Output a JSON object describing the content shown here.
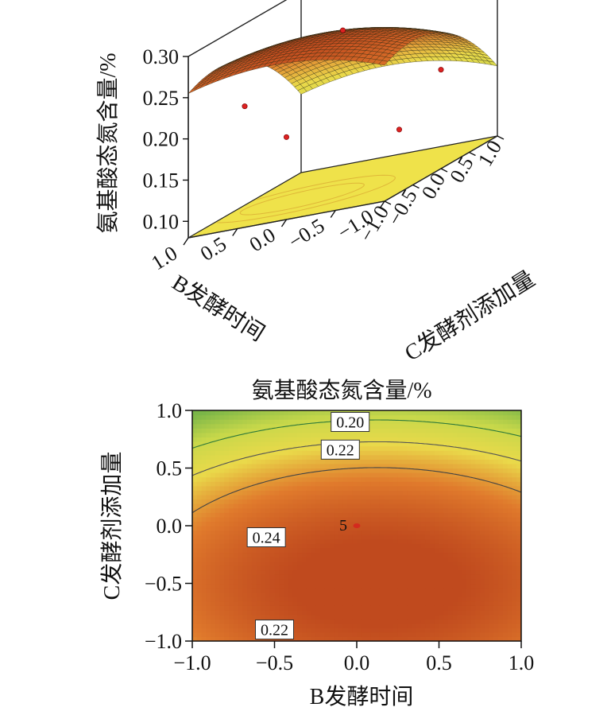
{
  "chart_data": [
    {
      "type": "surface",
      "title": "",
      "xlabel": "B发酵时间",
      "ylabel": "C发酵剂添加量",
      "zlabel": "氨基酸态氮含量/%",
      "x_ticks": [
        "−1.0",
        "−0.5",
        "0.0",
        "0.5",
        "1.0"
      ],
      "y_ticks": [
        "−1.0",
        "−0.5",
        "0.0",
        "0.5",
        "1.0"
      ],
      "z_ticks": [
        "0.10",
        "0.15",
        "0.20",
        "0.25",
        "0.30"
      ],
      "xlim": [
        -1,
        1
      ],
      "ylim": [
        -1,
        1
      ],
      "zlim": [
        0.08,
        0.3
      ],
      "colormap": [
        "#7ab648",
        "#c8d84a",
        "#ead94a",
        "#e07a2c",
        "#c04a1e"
      ],
      "design_points": [
        {
          "x": -1,
          "y": 0,
          "z": 0.2
        },
        {
          "x": 1,
          "y": 0,
          "z": 0.2
        },
        {
          "x": 0,
          "y": -1,
          "z": 0.18
        },
        {
          "x": 0,
          "y": 1,
          "z": 0.11
        },
        {
          "x": 0,
          "y": 0,
          "z": 0.27
        }
      ]
    },
    {
      "type": "contour",
      "title": "氨基酸态氮含量/%",
      "xlabel": "B发酵时间",
      "ylabel": "C发酵剂添加量",
      "x_ticks": [
        "−1.0",
        "−0.5",
        "0.0",
        "0.5",
        "1.0"
      ],
      "y_ticks": [
        "−1.0",
        "−0.5",
        "0.0",
        "0.5",
        "1.0"
      ],
      "xlim": [
        -1,
        1
      ],
      "ylim": [
        -1,
        1
      ],
      "contour_labels": [
        {
          "text": "0.20",
          "x": -0.04,
          "y": 0.9
        },
        {
          "text": "0.22",
          "x": -0.1,
          "y": 0.66
        },
        {
          "text": "0.24",
          "x": -0.55,
          "y": -0.1
        },
        {
          "text": "0.22",
          "x": -0.5,
          "y": -0.9
        }
      ],
      "center_point": {
        "label": "5",
        "x": 0,
        "y": 0
      },
      "colormap": [
        "#7ab648",
        "#c8d84a",
        "#ead94a",
        "#e07a2c",
        "#c04a1e"
      ]
    }
  ]
}
